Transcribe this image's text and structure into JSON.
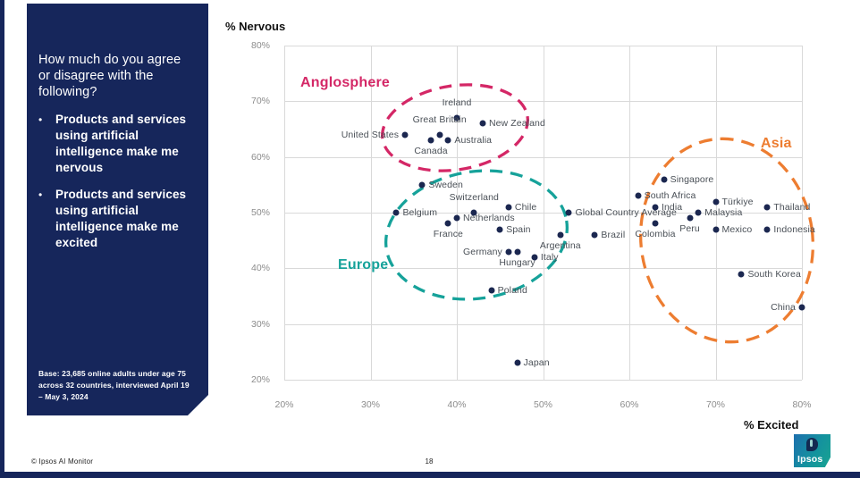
{
  "sidebar": {
    "question": "How much do you agree or disagree with the following?",
    "bullets": [
      "Products and services using artificial intelligence make me nervous",
      "Products and services using artificial intelligence make me excited"
    ],
    "base_note": "Base: 23,685 online adults under age 75 across 32 countries, interviewed April 19 – May 3, 2024"
  },
  "footer": {
    "copyright": "© Ipsos AI Monitor",
    "page_number": "18"
  },
  "logo": {
    "text": "Ipsos",
    "glyph": "quote-face-icon"
  },
  "chart_data": {
    "type": "scatter",
    "xlabel": "% Excited",
    "ylabel": "% Nervous",
    "xlim": [
      20,
      80
    ],
    "ylim": [
      20,
      80
    ],
    "grid": true,
    "x_ticks": [
      "20%",
      "30%",
      "40%",
      "50%",
      "60%",
      "70%",
      "80%"
    ],
    "y_ticks": [
      "80%",
      "70%",
      "60%",
      "50%",
      "40%",
      "30%",
      "20%"
    ],
    "point_color": "#1b2750",
    "groups": [
      {
        "name": "Anglosphere",
        "color": "#d42766"
      },
      {
        "name": "Europe",
        "color": "#16a29a"
      },
      {
        "name": "Asia",
        "color": "#ed7d31"
      }
    ],
    "points": [
      {
        "label": "United States",
        "excited": 34,
        "nervous": 64,
        "label_pos": "left"
      },
      {
        "label": "Ireland",
        "excited": 40,
        "nervous": 67,
        "label_pos": "above"
      },
      {
        "label": "Great Britain",
        "excited": 38,
        "nervous": 64,
        "label_pos": "above"
      },
      {
        "label": "New Zealand",
        "excited": 43,
        "nervous": 66,
        "label_pos": "right"
      },
      {
        "label": "Australia",
        "excited": 39,
        "nervous": 63,
        "label_pos": "right"
      },
      {
        "label": "Canada",
        "excited": 37,
        "nervous": 63,
        "label_pos": "below"
      },
      {
        "label": "Sweden",
        "excited": 36,
        "nervous": 55,
        "label_pos": "right"
      },
      {
        "label": "Belgium",
        "excited": 33,
        "nervous": 50,
        "label_pos": "right"
      },
      {
        "label": "Switzerland",
        "excited": 42,
        "nervous": 50,
        "label_pos": "above"
      },
      {
        "label": "Chile",
        "excited": 46,
        "nervous": 51,
        "label_pos": "right"
      },
      {
        "label": "Netherlands",
        "excited": 40,
        "nervous": 49,
        "label_pos": "right"
      },
      {
        "label": "France",
        "excited": 39,
        "nervous": 48,
        "label_pos": "below"
      },
      {
        "label": "Spain",
        "excited": 45,
        "nervous": 47,
        "label_pos": "right"
      },
      {
        "label": "Germany",
        "excited": 46,
        "nervous": 43,
        "label_pos": "left"
      },
      {
        "label": "Hungary",
        "excited": 47,
        "nervous": 43,
        "label_pos": "below"
      },
      {
        "label": "Italy",
        "excited": 49,
        "nervous": 42,
        "label_pos": "right"
      },
      {
        "label": "Poland",
        "excited": 44,
        "nervous": 36,
        "label_pos": "right"
      },
      {
        "label": "Argentina",
        "excited": 52,
        "nervous": 46,
        "label_pos": "below"
      },
      {
        "label": "Brazil",
        "excited": 56,
        "nervous": 46,
        "label_pos": "right"
      },
      {
        "label": "Global Country Average",
        "excited": 53,
        "nervous": 50,
        "label_pos": "right"
      },
      {
        "label": "Japan",
        "excited": 47,
        "nervous": 23,
        "label_pos": "right"
      },
      {
        "label": "Singapore",
        "excited": 64,
        "nervous": 56,
        "label_pos": "right"
      },
      {
        "label": "South Africa",
        "excited": 61,
        "nervous": 53,
        "label_pos": "right"
      },
      {
        "label": "India",
        "excited": 63,
        "nervous": 51,
        "label_pos": "right"
      },
      {
        "label": "Türkiye",
        "excited": 70,
        "nervous": 52,
        "label_pos": "right"
      },
      {
        "label": "Thailand",
        "excited": 76,
        "nervous": 51,
        "label_pos": "right"
      },
      {
        "label": "Malaysia",
        "excited": 68,
        "nervous": 50,
        "label_pos": "right"
      },
      {
        "label": "Peru",
        "excited": 67,
        "nervous": 49,
        "label_pos": "below"
      },
      {
        "label": "Colombia",
        "excited": 63,
        "nervous": 48,
        "label_pos": "below"
      },
      {
        "label": "Mexico",
        "excited": 70,
        "nervous": 47,
        "label_pos": "right"
      },
      {
        "label": "Indonesia",
        "excited": 76,
        "nervous": 47,
        "label_pos": "right"
      },
      {
        "label": "South Korea",
        "excited": 73,
        "nervous": 39,
        "label_pos": "right"
      },
      {
        "label": "China",
        "excited": 80,
        "nervous": 33,
        "label_pos": "left"
      }
    ]
  }
}
